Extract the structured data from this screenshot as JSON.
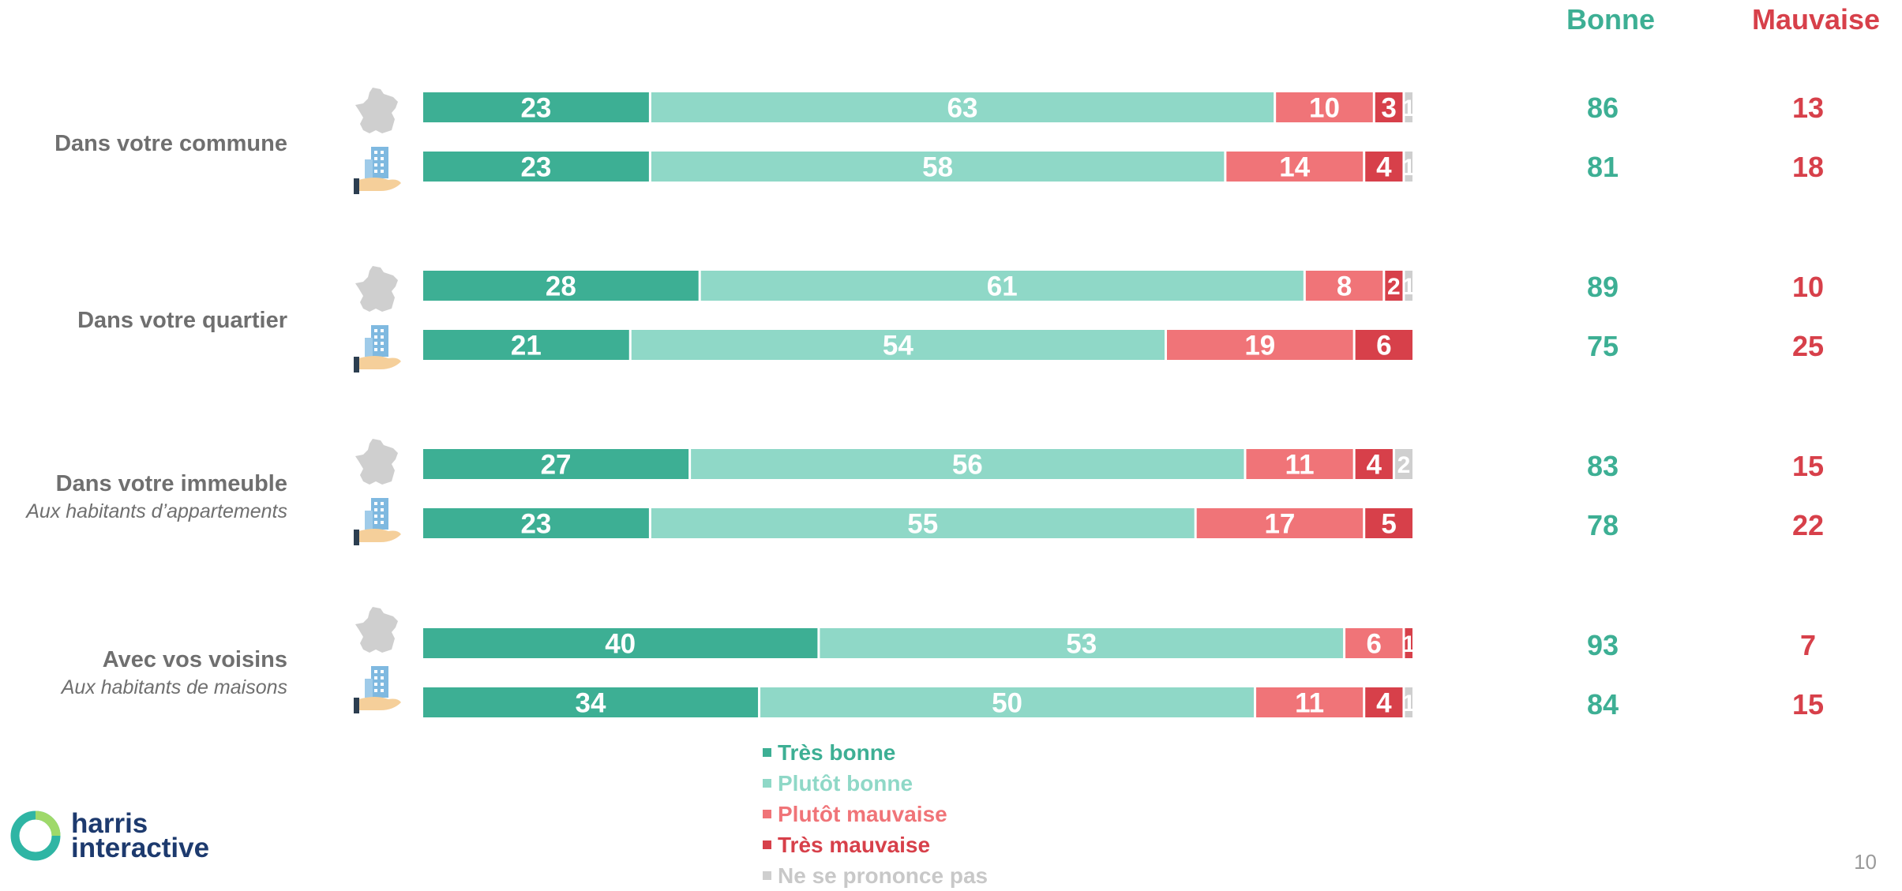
{
  "columns": {
    "good": "Bonne",
    "bad": "Mauvaise"
  },
  "colors": {
    "tres_bonne": "#3daf94",
    "plutot_bonne": "#8fd8c7",
    "plutot_mauvaise": "#f07478",
    "tres_mauvaise": "#d7404a",
    "nspp": "#cfcfcf",
    "good_text": "#3daf94",
    "bad_text": "#d7404a"
  },
  "icons": [
    "france-map-icon",
    "building-in-hand-icon"
  ],
  "groups": [
    {
      "title": "Dans votre commune",
      "subtitle": ""
    },
    {
      "title": "Dans votre quartier",
      "subtitle": ""
    },
    {
      "title": "Dans votre immeuble",
      "subtitle": "Aux habitants d’appartements"
    },
    {
      "title": "Avec vos voisins",
      "subtitle": "Aux habitants de maisons"
    }
  ],
  "totals": [
    {
      "good": "86",
      "bad": "13"
    },
    {
      "good": "81",
      "bad": "18"
    },
    {
      "good": "89",
      "bad": "10"
    },
    {
      "good": "75",
      "bad": "25"
    },
    {
      "good": "83",
      "bad": "15"
    },
    {
      "good": "78",
      "bad": "22"
    },
    {
      "good": "93",
      "bad": "7"
    },
    {
      "good": "84",
      "bad": "15"
    }
  ],
  "chart_data": {
    "type": "bar",
    "orientation": "horizontal",
    "stacked": true,
    "unit": "%",
    "series_names": [
      "Très bonne",
      "Plutôt bonne",
      "Plutôt mauvaise",
      "Très mauvaise",
      "Ne se prononce pas"
    ],
    "rows": [
      {
        "group": "Dans votre commune",
        "population": "france-map-icon",
        "values": [
          23,
          63,
          10,
          3,
          1
        ]
      },
      {
        "group": "Dans votre commune",
        "population": "building-in-hand-icon",
        "values": [
          23,
          58,
          14,
          4,
          1
        ]
      },
      {
        "group": "Dans votre quartier",
        "population": "france-map-icon",
        "values": [
          28,
          61,
          8,
          2,
          1
        ]
      },
      {
        "group": "Dans votre quartier",
        "population": "building-in-hand-icon",
        "values": [
          21,
          54,
          19,
          6,
          0
        ]
      },
      {
        "group": "Dans votre immeuble",
        "population": "france-map-icon",
        "values": [
          27,
          56,
          11,
          4,
          2
        ]
      },
      {
        "group": "Dans votre immeuble",
        "population": "building-in-hand-icon",
        "values": [
          23,
          55,
          17,
          5,
          0
        ]
      },
      {
        "group": "Avec vos voisins",
        "population": "france-map-icon",
        "values": [
          40,
          53,
          6,
          1,
          0
        ]
      },
      {
        "group": "Avec vos voisins",
        "population": "building-in-hand-icon",
        "values": [
          34,
          50,
          11,
          4,
          1
        ]
      }
    ]
  },
  "legend": [
    "Très bonne",
    "Plutôt bonne",
    "Plutôt mauvaise",
    "Très mauvaise",
    "Ne se prononce pas"
  ],
  "logo": {
    "line1": "harris",
    "line2": "interactive"
  },
  "page_number": "10"
}
